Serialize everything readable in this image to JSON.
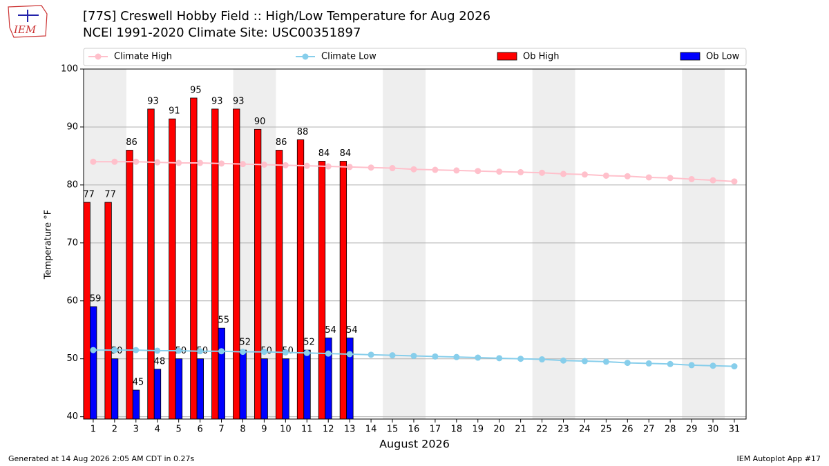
{
  "chart_data": {
    "type": "bar",
    "logo": "IEM",
    "title": "[77S] Creswell Hobby Field :: High/Low Temperature for Aug 2026",
    "subtitle": "NCEI 1991-2020 Climate Site: USC00351897",
    "x_label": "August 2026",
    "y_label": "Temperature °F",
    "footer_left": "Generated at 14 Aug 2026 2:05 AM CDT in 0.27s",
    "footer_right": "IEM Autoplot App #17",
    "categories": [
      "1",
      "2",
      "3",
      "4",
      "5",
      "6",
      "7",
      "8",
      "9",
      "10",
      "11",
      "12",
      "13",
      "14",
      "15",
      "16",
      "17",
      "18",
      "19",
      "20",
      "21",
      "22",
      "23",
      "24",
      "25",
      "26",
      "27",
      "28",
      "29",
      "30",
      "31"
    ],
    "ylim": [
      39.6,
      100
    ],
    "yticks": [
      40,
      50,
      60,
      70,
      80,
      90,
      100
    ],
    "grid": true,
    "series": [
      {
        "name": "Climate High",
        "kind": "line",
        "color": "#ffc0cb",
        "values": [
          84.0,
          84.0,
          84.0,
          83.9,
          83.8,
          83.8,
          83.7,
          83.6,
          83.5,
          83.4,
          83.3,
          83.2,
          83.1,
          83.0,
          82.9,
          82.7,
          82.6,
          82.5,
          82.4,
          82.3,
          82.2,
          82.1,
          81.9,
          81.8,
          81.6,
          81.5,
          81.3,
          81.2,
          81.0,
          80.8,
          80.6
        ]
      },
      {
        "name": "Climate Low",
        "kind": "line",
        "color": "#87ceeb",
        "values": [
          51.5,
          51.5,
          51.5,
          51.4,
          51.4,
          51.3,
          51.3,
          51.2,
          51.2,
          51.1,
          51.0,
          50.9,
          50.8,
          50.7,
          50.6,
          50.5,
          50.4,
          50.3,
          50.2,
          50.1,
          50.0,
          49.9,
          49.7,
          49.6,
          49.5,
          49.3,
          49.2,
          49.1,
          48.9,
          48.8,
          48.7
        ]
      },
      {
        "name": "Ob High",
        "kind": "bar",
        "color": "#ff0000",
        "values": [
          77,
          77,
          86,
          93.1,
          91.4,
          95,
          93.1,
          93.1,
          89.6,
          86,
          87.8,
          84.1,
          84.1,
          null,
          null,
          null,
          null,
          null,
          null,
          null,
          null,
          null,
          null,
          null,
          null,
          null,
          null,
          null,
          null,
          null,
          null
        ],
        "value_labels": [
          "77",
          "77",
          "86",
          "93",
          "91",
          "95",
          "93",
          "93",
          "90",
          "86",
          "88",
          "84",
          "84",
          null,
          null,
          null,
          null,
          null,
          null,
          null,
          null,
          null,
          null,
          null,
          null,
          null,
          null,
          null,
          null,
          null,
          null
        ]
      },
      {
        "name": "Ob Low",
        "kind": "bar",
        "color": "#0000ff",
        "values": [
          59,
          50,
          44.6,
          48.2,
          50,
          50,
          55.3,
          51.5,
          50,
          50,
          51.5,
          53.6,
          53.6,
          null,
          null,
          null,
          null,
          null,
          null,
          null,
          null,
          null,
          null,
          null,
          null,
          null,
          null,
          null,
          null,
          null,
          null
        ],
        "value_labels": [
          "59",
          "50",
          "45",
          "48",
          "50",
          "50",
          "55",
          "52",
          "50",
          "50",
          "52",
          "54",
          "54",
          null,
          null,
          null,
          null,
          null,
          null,
          null,
          null,
          null,
          null,
          null,
          null,
          null,
          null,
          null,
          null,
          null,
          null
        ]
      }
    ]
  }
}
